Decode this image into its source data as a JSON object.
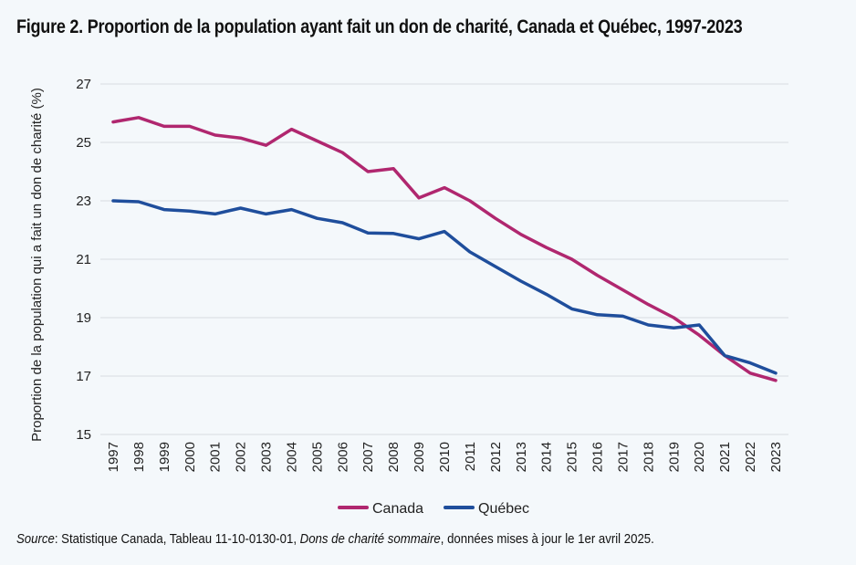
{
  "chart_data": {
    "type": "line",
    "title": "Figure 2. Proportion de la population ayant fait un don de charité, Canada et Québec, 1997-2023",
    "ylabel": "Proportion de la population qui a fait un don de charité (%)",
    "xlabel": "",
    "ylim": [
      15,
      27
    ],
    "yticks": [
      15,
      17,
      19,
      21,
      23,
      25,
      27
    ],
    "grid": true,
    "legend_position": "bottom",
    "categories": [
      "1997",
      "1998",
      "1999",
      "2000",
      "2001",
      "2002",
      "2003",
      "2004",
      "2005",
      "2006",
      "2007",
      "2008",
      "2009",
      "2010",
      "2011",
      "2012",
      "2013",
      "2014",
      "2015",
      "2016",
      "2017",
      "2018",
      "2019",
      "2020",
      "2021",
      "2022",
      "2023"
    ],
    "series": [
      {
        "name": "Canada",
        "color": "#b0276f",
        "values": [
          25.7,
          25.85,
          25.55,
          25.55,
          25.25,
          25.15,
          24.9,
          25.45,
          25.05,
          24.65,
          24.0,
          24.1,
          23.1,
          23.45,
          23.0,
          22.4,
          21.85,
          21.4,
          21.0,
          20.45,
          19.95,
          19.45,
          19.0,
          18.4,
          17.7,
          17.1,
          16.85
        ]
      },
      {
        "name": "Québec",
        "color": "#1f4e9c",
        "values": [
          23.0,
          22.97,
          22.7,
          22.65,
          22.55,
          22.75,
          22.55,
          22.7,
          22.4,
          22.25,
          21.9,
          21.88,
          21.7,
          21.95,
          21.25,
          20.75,
          20.25,
          19.8,
          19.3,
          19.1,
          19.05,
          18.75,
          18.65,
          18.75,
          17.7,
          17.45,
          17.1
        ]
      }
    ]
  },
  "source": {
    "label": "Source",
    "text1": ": Statistique Canada, Tableau 11-10-0130-01, ",
    "publication": "Dons de charité sommaire",
    "text2": ", données mises à jour le 1er avril 2025."
  }
}
